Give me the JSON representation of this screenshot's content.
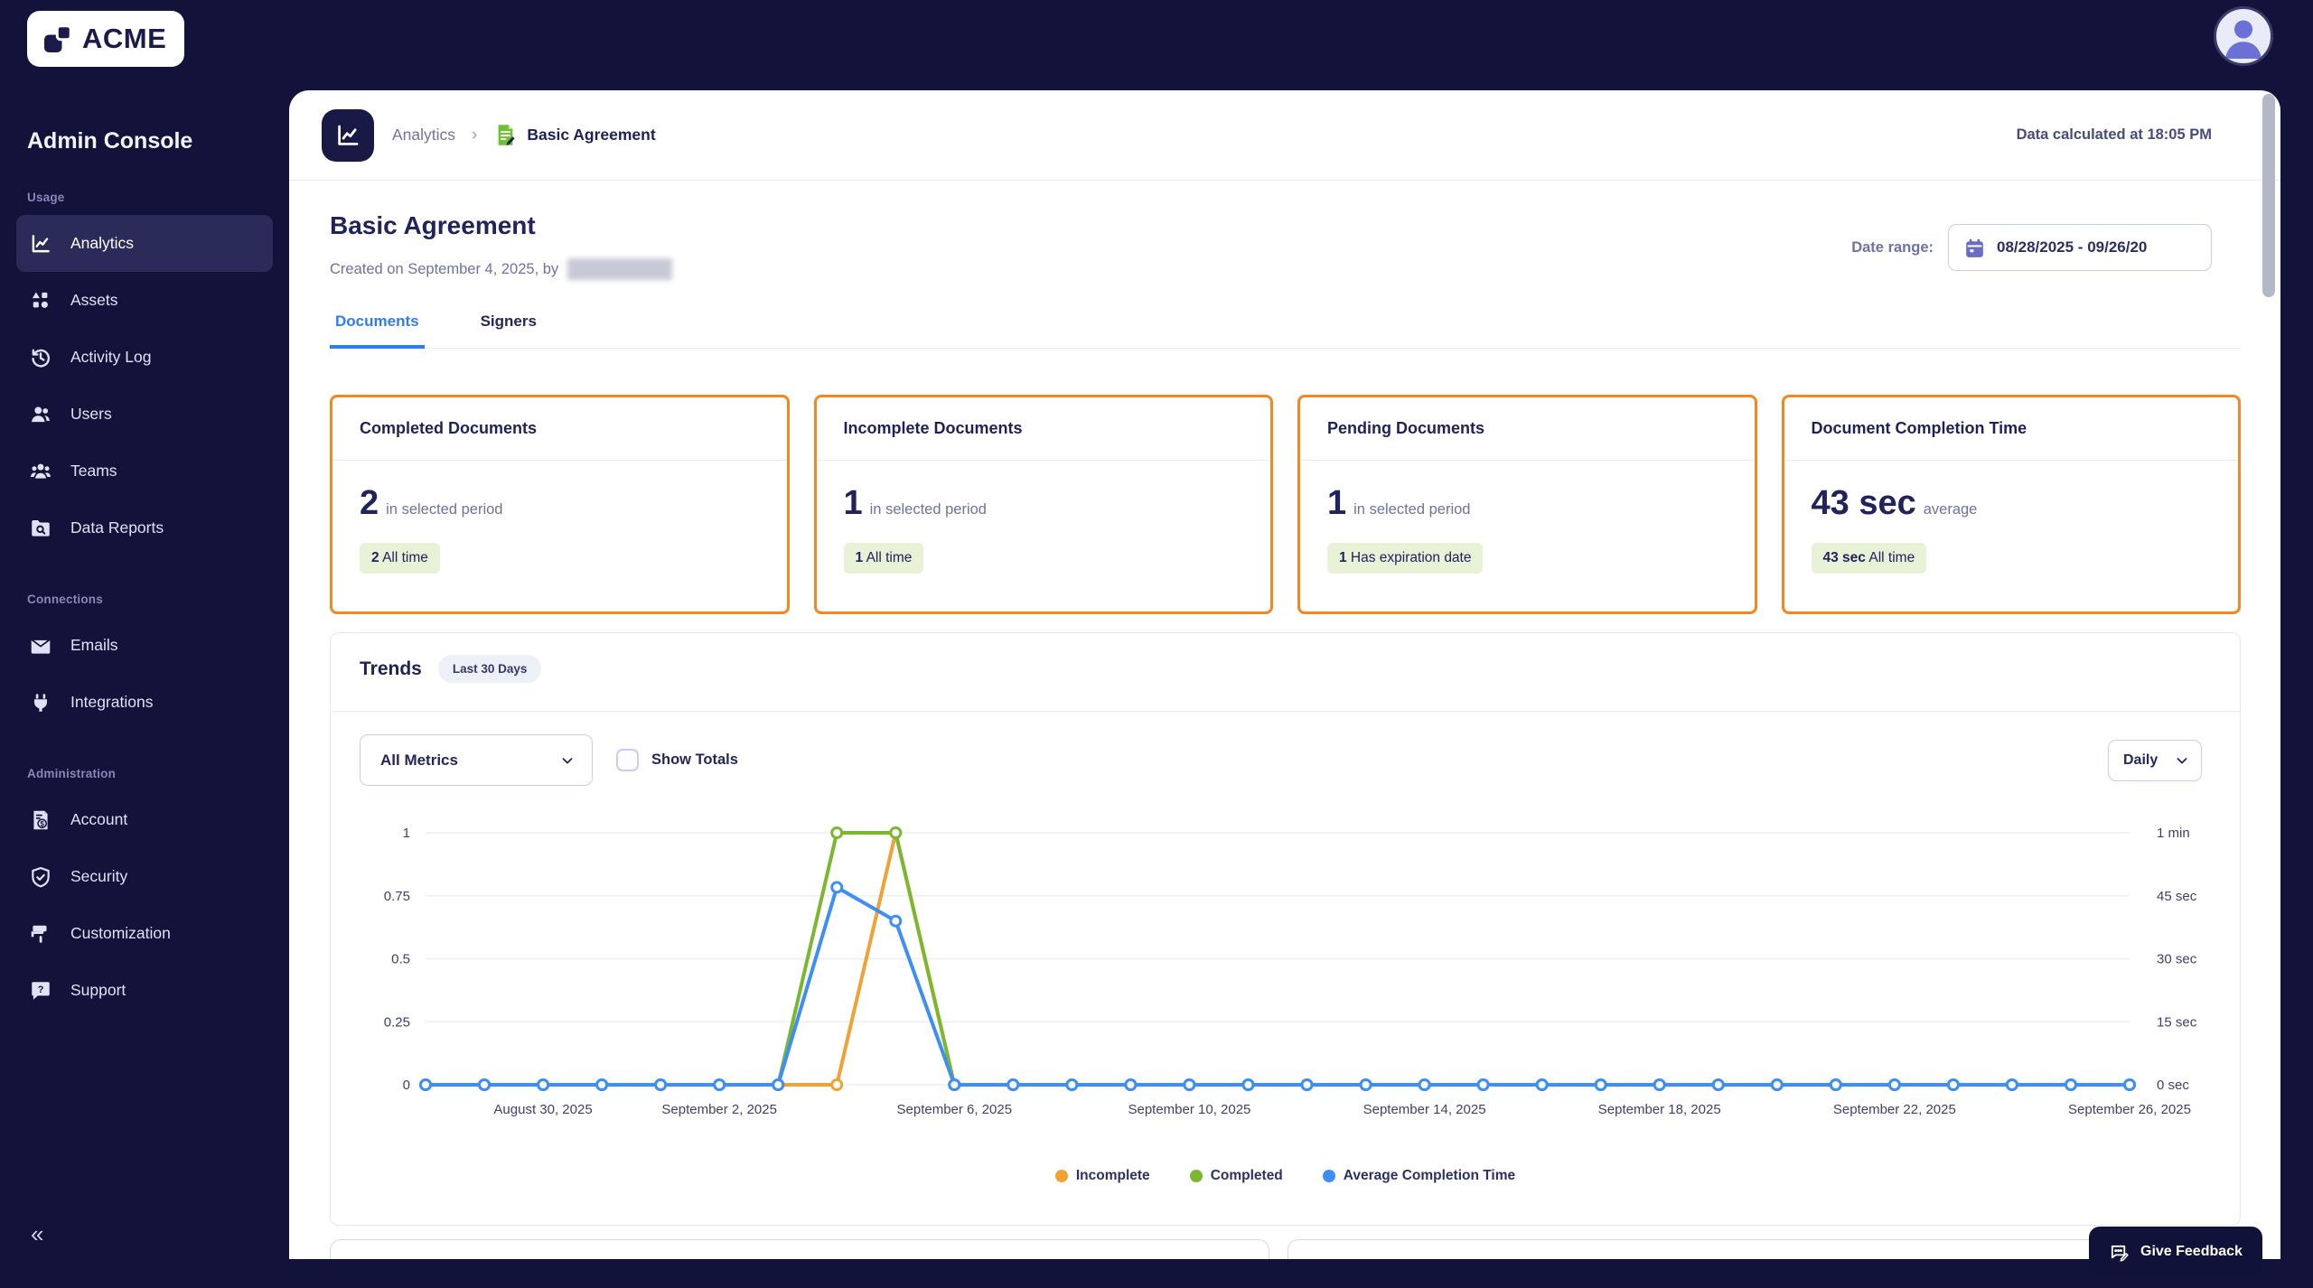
{
  "brand": {
    "name": "ACME"
  },
  "topbar": {
    "avatar_icon": "user-avatar-icon"
  },
  "sidebar": {
    "title": "Admin Console",
    "collapse_icon": "«",
    "sections": [
      {
        "label": "Usage",
        "items": [
          {
            "label": "Analytics",
            "icon": "chart-line",
            "active": true
          },
          {
            "label": "Assets",
            "icon": "shapes",
            "active": false
          },
          {
            "label": "Activity Log",
            "icon": "history-clock",
            "active": false
          },
          {
            "label": "Users",
            "icon": "user",
            "active": false
          },
          {
            "label": "Teams",
            "icon": "users-group",
            "active": false
          },
          {
            "label": "Data Reports",
            "icon": "folder-search",
            "active": false
          }
        ]
      },
      {
        "label": "Connections",
        "items": [
          {
            "label": "Emails",
            "icon": "envelope",
            "active": false
          },
          {
            "label": "Integrations",
            "icon": "plug",
            "active": false
          }
        ]
      },
      {
        "label": "Administration",
        "items": [
          {
            "label": "Account",
            "icon": "invoice-dollar",
            "active": false
          },
          {
            "label": "Security",
            "icon": "shield-check",
            "active": false
          },
          {
            "label": "Customization",
            "icon": "paint-roller",
            "active": false
          },
          {
            "label": "Support",
            "icon": "help-chat",
            "active": false
          }
        ]
      }
    ]
  },
  "header": {
    "breadcrumb_section": "Analytics",
    "breadcrumb_current": "Basic Agreement",
    "calculated_text": "Data calculated at 18:05 PM"
  },
  "page": {
    "title": "Basic Agreement",
    "created_prefix": "Created on September 4, 2025, by",
    "author_redacted": true,
    "date_range_label": "Date range:",
    "date_range_value": "08/28/2025 - 09/26/20",
    "tabs": [
      {
        "label": "Documents",
        "active": true
      },
      {
        "label": "Signers",
        "active": false
      }
    ]
  },
  "stat_cards": [
    {
      "title": "Completed Documents",
      "value": "2",
      "suffix": "in selected period",
      "badge_strong": "2",
      "badge_rest": "All time"
    },
    {
      "title": "Incomplete Documents",
      "value": "1",
      "suffix": "in selected period",
      "badge_strong": "1",
      "badge_rest": "All time"
    },
    {
      "title": "Pending Documents",
      "value": "1",
      "suffix": "in selected period",
      "badge_strong": "1",
      "badge_rest": "Has expiration date"
    },
    {
      "title": "Document Completion Time",
      "value": "43 sec",
      "suffix": "average",
      "badge_strong": "43 sec",
      "badge_rest": "All time"
    }
  ],
  "trends": {
    "title": "Trends",
    "period_badge": "Last 30 Days",
    "metrics_select_value": "All Metrics",
    "show_totals_label": "Show Totals",
    "show_totals_checked": false,
    "granularity_select_value": "Daily"
  },
  "chart_data": {
    "type": "line",
    "n_days": 30,
    "x_start_date": "2025-08-28",
    "x_end_date": "2025-09-26",
    "x_tick_labels": [
      "August 30, 2025",
      "September 2, 2025",
      "September 6, 2025",
      "September 10, 2025",
      "September 14, 2025",
      "September 18, 2025",
      "September 22, 2025",
      "September 26, 2025"
    ],
    "x_tick_day_index": [
      2,
      5,
      9,
      13,
      17,
      21,
      25,
      29
    ],
    "left_axis": {
      "ticks_top_to_bottom": [
        "1",
        "0.75",
        "0.5",
        "0.25",
        "0"
      ],
      "min": 0,
      "max": 1
    },
    "right_axis": {
      "ticks_top_to_bottom": [
        "1 min",
        "45 sec",
        "30 sec",
        "15 sec",
        "0 sec"
      ],
      "min": 0,
      "max": 60,
      "unit": "seconds"
    },
    "grid": true,
    "legend_position": "bottom",
    "series": [
      {
        "name": "Incomplete",
        "color": "#F2A135",
        "axis": "left",
        "values": [
          0,
          0,
          0,
          0,
          0,
          0,
          0,
          0,
          1,
          0,
          0,
          0,
          0,
          0,
          0,
          0,
          0,
          0,
          0,
          0,
          0,
          0,
          0,
          0,
          0,
          0,
          0,
          0,
          0,
          0
        ]
      },
      {
        "name": "Completed",
        "color": "#7CB82F",
        "axis": "left",
        "values": [
          0,
          0,
          0,
          0,
          0,
          0,
          0,
          1,
          1,
          0,
          0,
          0,
          0,
          0,
          0,
          0,
          0,
          0,
          0,
          0,
          0,
          0,
          0,
          0,
          0,
          0,
          0,
          0,
          0,
          0
        ]
      },
      {
        "name": "Average Completion Time",
        "color": "#3D8EF7",
        "axis": "right",
        "values": [
          0,
          0,
          0,
          0,
          0,
          0,
          0,
          47,
          39,
          0,
          0,
          0,
          0,
          0,
          0,
          0,
          0,
          0,
          0,
          0,
          0,
          0,
          0,
          0,
          0,
          0,
          0,
          0,
          0,
          0
        ]
      }
    ]
  },
  "feedback": {
    "label": "Give Feedback"
  },
  "colors": {
    "app_background": "#12123B",
    "stat_card_border": "#F6861F",
    "badge_background": "#E7F2D7",
    "active_tab": "#2E7DF6",
    "breadcrumb_doc_icon": "#6FC12F",
    "calendar_icon": "#686DC9"
  }
}
